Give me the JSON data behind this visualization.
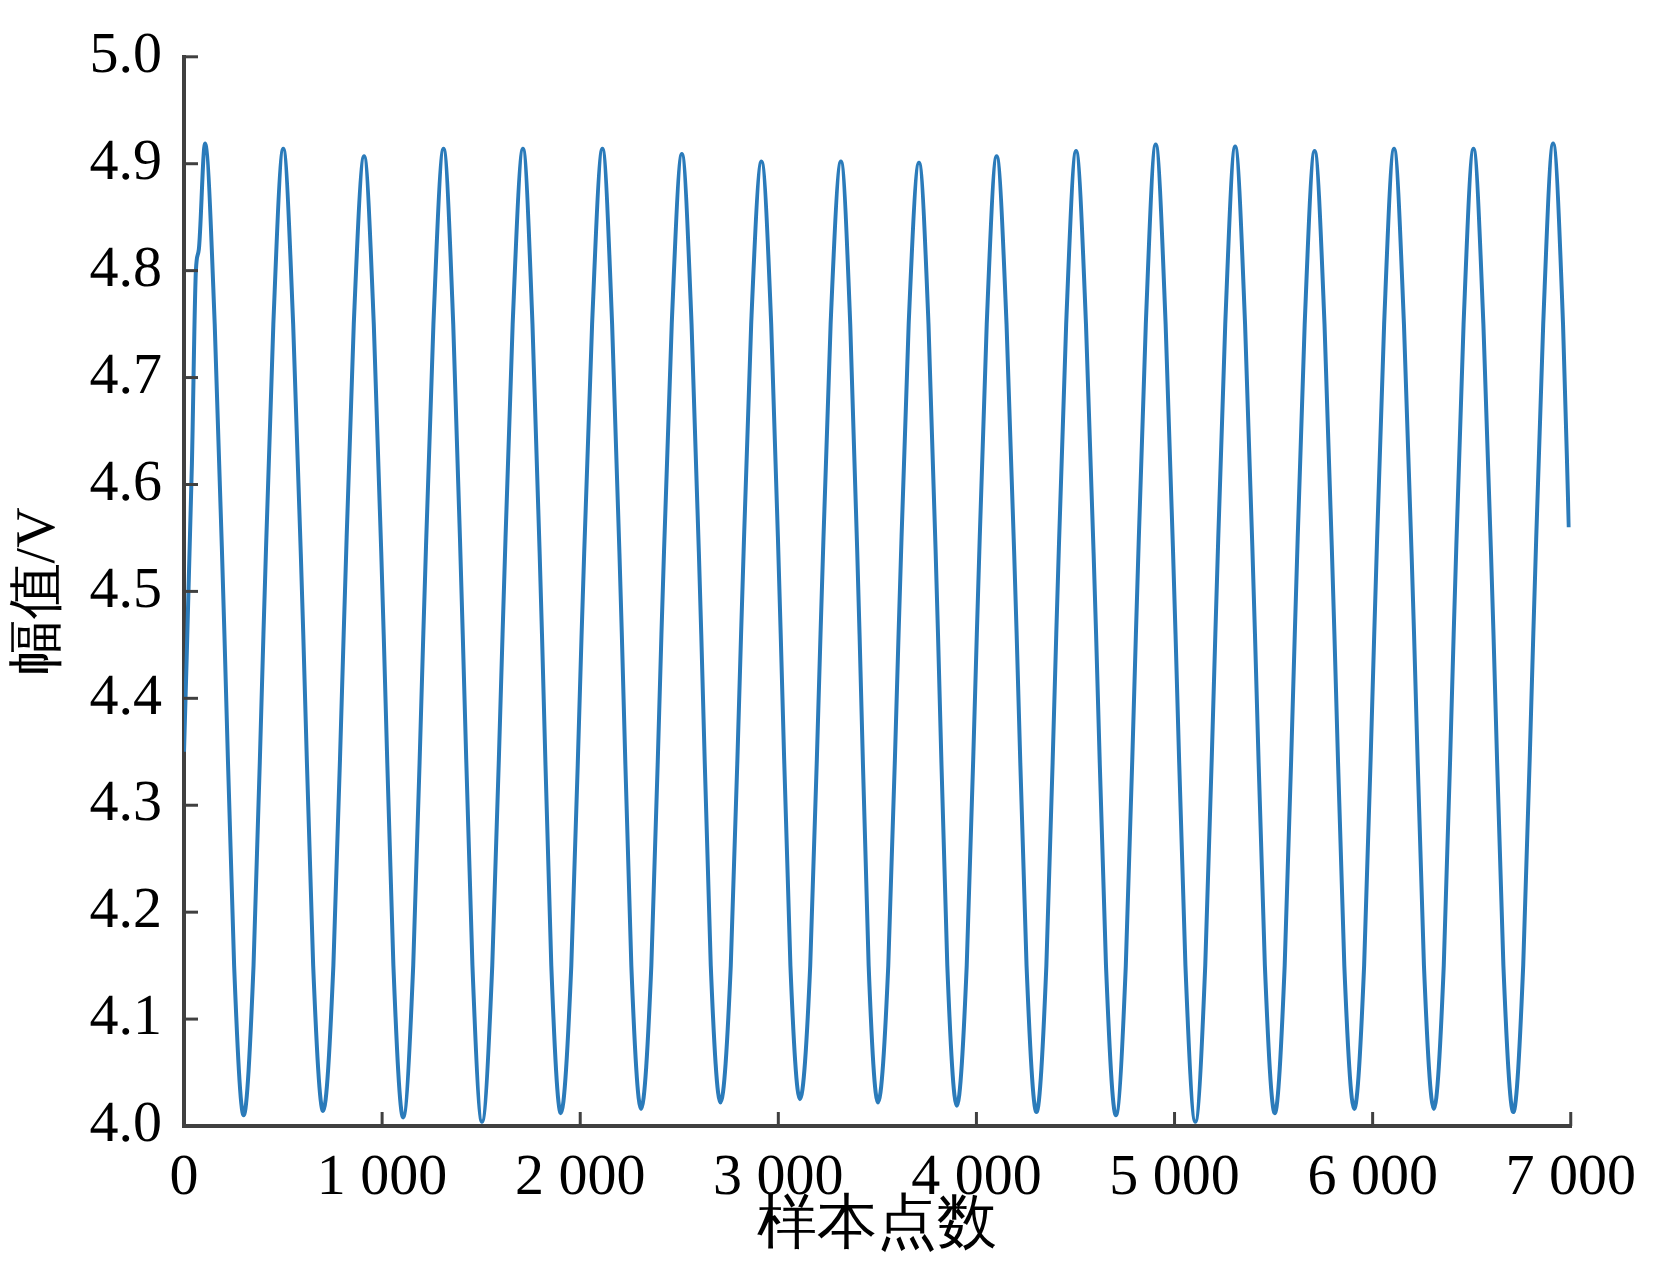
{
  "chart_data": {
    "type": "line",
    "xlabel": "样本点数",
    "ylabel": "幅值/V",
    "xlim": [
      0,
      7000
    ],
    "ylim": [
      4,
      5
    ],
    "xticks": [
      0,
      {
        "value": 1000,
        "label": "1 000"
      },
      {
        "value": 2000,
        "label": "2 000"
      },
      {
        "value": 3000,
        "label": "3 000"
      },
      {
        "value": 4000,
        "label": "4 000"
      },
      {
        "value": 5000,
        "label": "5 000"
      },
      {
        "value": 6000,
        "label": "6 000"
      },
      {
        "value": 7000,
        "label": "7 000"
      }
    ],
    "yticks": [
      {
        "value": 4,
        "label": "4.0"
      },
      4.1,
      4.2,
      4.3,
      4.4,
      4.5,
      4.6,
      4.7,
      4.8,
      4.9,
      {
        "value": 5,
        "label": "5.0"
      }
    ],
    "legend": false,
    "marker": "none",
    "line_style": "solid",
    "x": [
      0,
      40,
      60,
      75,
      106,
      155,
      204,
      253,
      301,
      351,
      401,
      451,
      501,
      551,
      602,
      652,
      702,
      754,
      806,
      857,
      909,
      958,
      1008,
      1057,
      1106,
      1157,
      1208,
      1259,
      1310,
      1359,
      1407,
      1456,
      1504,
      1556,
      1608,
      1659,
      1711,
      1759,
      1807,
      1854,
      1902,
      1955,
      2007,
      2060,
      2112,
      2161,
      2210,
      2258,
      2307,
      2359,
      2410,
      2462,
      2513,
      2562,
      2611,
      2659,
      2708,
      2760,
      2812,
      2863,
      2915,
      2964,
      3012,
      3061,
      3109,
      3161,
      3213,
      3264,
      3316,
      3363,
      3410,
      3456,
      3503,
      3555,
      3607,
      3658,
      3710,
      3758,
      3806,
      3853,
      3901,
      3951,
      4002,
      4052,
      4102,
      4152,
      4203,
      4253,
      4303,
      4353,
      4403,
      4453,
      4503,
      4553,
      4604,
      4654,
      4704,
      4754,
      4805,
      4855,
      4905,
      4955,
      5005,
      5055,
      5105,
      5155,
      5206,
      5256,
      5306,
      5356,
      5406,
      5456,
      5506,
      5556,
      5607,
      5657,
      5707,
      5757,
      5807,
      5857,
      5907,
      5957,
      6008,
      6058,
      6108,
      6158,
      6209,
      6259,
      6309,
      6359,
      6409,
      6459,
      6509,
      6559,
      6610,
      6660,
      6710,
      6760,
      6811,
      6861,
      6911,
      6961,
      6990
    ],
    "series": [
      {
        "color": "#2b7bba",
        "values": [
          4.35,
          4.62,
          4.8,
          4.82,
          4.919,
          4.75,
          4.46,
          4.15,
          4.01,
          4.15,
          4.46,
          4.75,
          4.914,
          4.75,
          4.46,
          4.15,
          4.014,
          4.15,
          4.46,
          4.75,
          4.907,
          4.75,
          4.46,
          4.15,
          4.008,
          4.15,
          4.46,
          4.75,
          4.914,
          4.75,
          4.46,
          4.15,
          4.004,
          4.15,
          4.46,
          4.75,
          4.914,
          4.75,
          4.46,
          4.15,
          4.012,
          4.15,
          4.46,
          4.75,
          4.914,
          4.75,
          4.46,
          4.15,
          4.016,
          4.15,
          4.46,
          4.75,
          4.909,
          4.75,
          4.46,
          4.15,
          4.022,
          4.15,
          4.46,
          4.75,
          4.902,
          4.75,
          4.46,
          4.15,
          4.025,
          4.15,
          4.46,
          4.75,
          4.902,
          4.75,
          4.46,
          4.15,
          4.022,
          4.15,
          4.46,
          4.75,
          4.901,
          4.75,
          4.46,
          4.15,
          4.019,
          4.15,
          4.46,
          4.75,
          4.907,
          4.75,
          4.46,
          4.15,
          4.013,
          4.15,
          4.46,
          4.75,
          4.912,
          4.75,
          4.46,
          4.15,
          4.01,
          4.15,
          4.46,
          4.75,
          4.918,
          4.75,
          4.46,
          4.15,
          4.004,
          4.15,
          4.46,
          4.75,
          4.916,
          4.75,
          4.46,
          4.15,
          4.012,
          4.15,
          4.46,
          4.75,
          4.912,
          4.75,
          4.46,
          4.15,
          4.016,
          4.15,
          4.46,
          4.75,
          4.914,
          4.75,
          4.46,
          4.15,
          4.016,
          4.15,
          4.46,
          4.75,
          4.914,
          4.75,
          4.46,
          4.15,
          4.013,
          4.15,
          4.46,
          4.75,
          4.919,
          4.75,
          4.56
        ]
      }
    ]
  }
}
